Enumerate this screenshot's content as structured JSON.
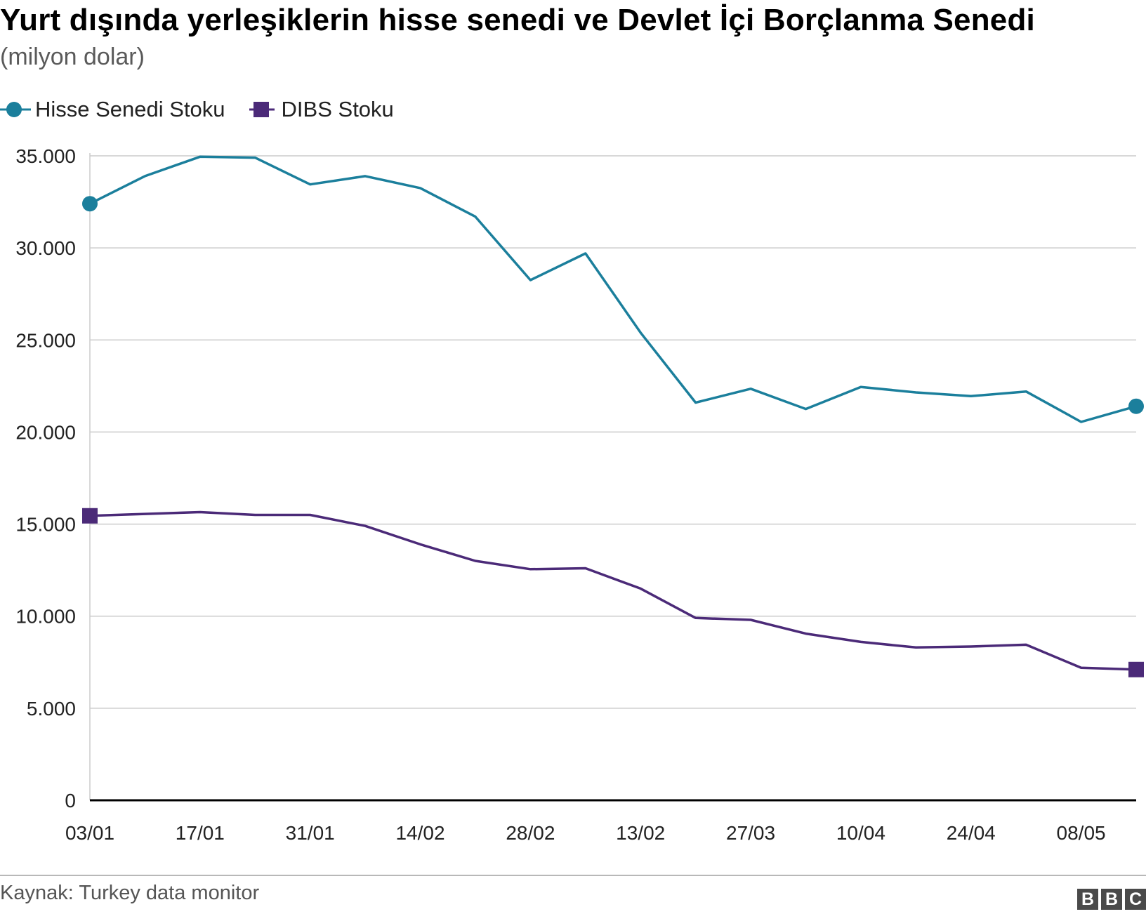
{
  "title": "Yurt dışında yerleşiklerin hisse senedi ve Devlet İçi Borçlanma Senedi",
  "subtitle": "(milyon dolar)",
  "legend": [
    {
      "label": "Hisse Senedi Stoku",
      "marker": "circle"
    },
    {
      "label": "DIBS Stoku",
      "marker": "square"
    }
  ],
  "source": "Kaynak: Turkey data monitor",
  "logo": [
    "B",
    "B",
    "C"
  ],
  "colors": {
    "hisse": "#1b7f9c",
    "dibs": "#4b2a78",
    "grid": "#cccccc",
    "axis": "#000000"
  },
  "chart_data": {
    "type": "line",
    "title": "Yurt dışında yerleşiklerin hisse senedi ve Devlet İçi Borçlanma Senedi",
    "subtitle": "(milyon dolar)",
    "ylim": [
      0,
      35000
    ],
    "yticks": [
      0,
      5000,
      10000,
      15000,
      20000,
      25000,
      30000,
      35000
    ],
    "ytick_labels": [
      "0",
      "5.000",
      "10.000",
      "15.000",
      "20.000",
      "25.000",
      "30.000",
      "35.000"
    ],
    "x_tick_labels": [
      "03/01",
      "17/01",
      "31/01",
      "14/02",
      "28/02",
      "13/02",
      "27/03",
      "10/04",
      "24/04",
      "08/05"
    ],
    "grid": true,
    "legend_position": "top-left",
    "series": [
      {
        "name": "Hisse Senedi Stoku",
        "marker": "circle",
        "values": [
          32400,
          33900,
          34950,
          34900,
          33450,
          33900,
          33250,
          31700,
          28250,
          29700,
          25400,
          21600,
          22350,
          21250,
          22450,
          22150,
          21950,
          22200,
          20550,
          21400
        ]
      },
      {
        "name": "DIBS Stoku",
        "marker": "square",
        "values": [
          15450,
          15550,
          15650,
          15500,
          15500,
          14900,
          13900,
          13000,
          12550,
          12600,
          11500,
          9900,
          9800,
          9050,
          8600,
          8300,
          8350,
          8450,
          7200,
          7100
        ]
      }
    ]
  }
}
